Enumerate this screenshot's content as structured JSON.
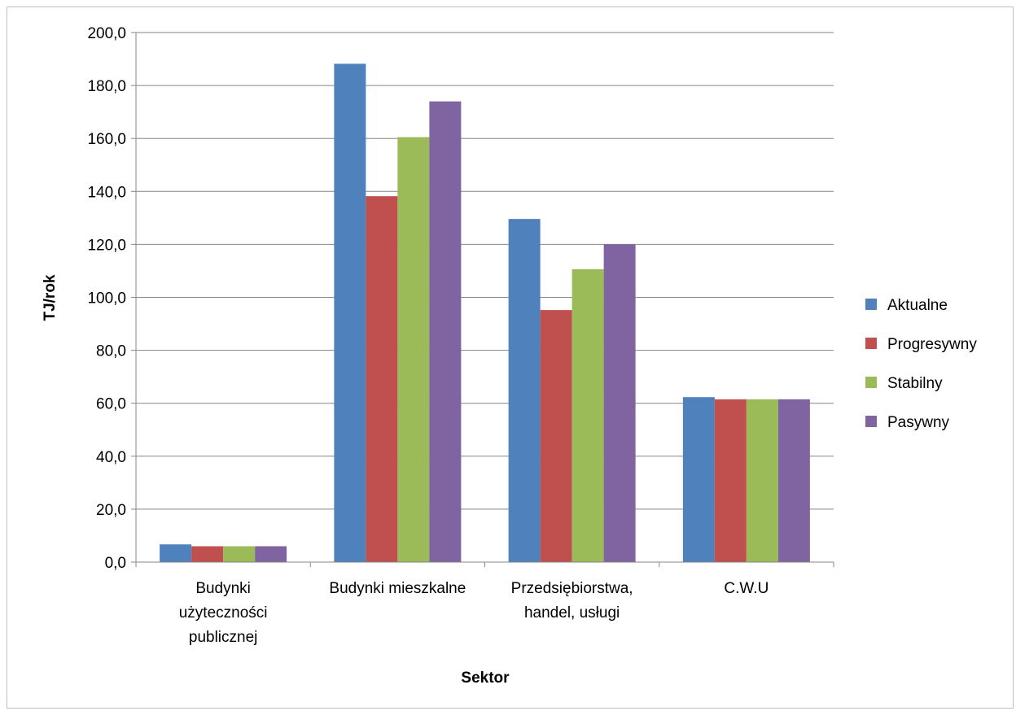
{
  "chart_data": {
    "type": "bar",
    "title": "",
    "xlabel": "Sektor",
    "ylabel": "TJ/rok",
    "ylim": [
      0,
      200
    ],
    "ytick_step": 20,
    "ytick_labels": [
      "0,0",
      "20,0",
      "40,0",
      "60,0",
      "80,0",
      "100,0",
      "120,0",
      "140,0",
      "160,0",
      "180,0",
      "200,0"
    ],
    "grid": "horizontal",
    "legend_position": "right",
    "categories": [
      [
        "Budynki",
        "użyteczności",
        "publicznej"
      ],
      [
        "Budynki mieszkalne"
      ],
      [
        "Przedsiębiorstwa,",
        "handel, usługi"
      ],
      [
        "C.W.U"
      ]
    ],
    "series": [
      {
        "name": "Aktualne",
        "color": "#4f81bd",
        "values": [
          6.7,
          188.2,
          129.6,
          62.3
        ]
      },
      {
        "name": "Progresywny",
        "color": "#c0504d",
        "values": [
          6.0,
          138.2,
          95.2,
          61.5
        ]
      },
      {
        "name": "Stabilny",
        "color": "#9bbb59",
        "values": [
          6.0,
          160.5,
          110.6,
          61.5
        ]
      },
      {
        "name": "Pasywny",
        "color": "#8064a2",
        "values": [
          6.0,
          174.0,
          120.0,
          61.5
        ]
      }
    ]
  }
}
